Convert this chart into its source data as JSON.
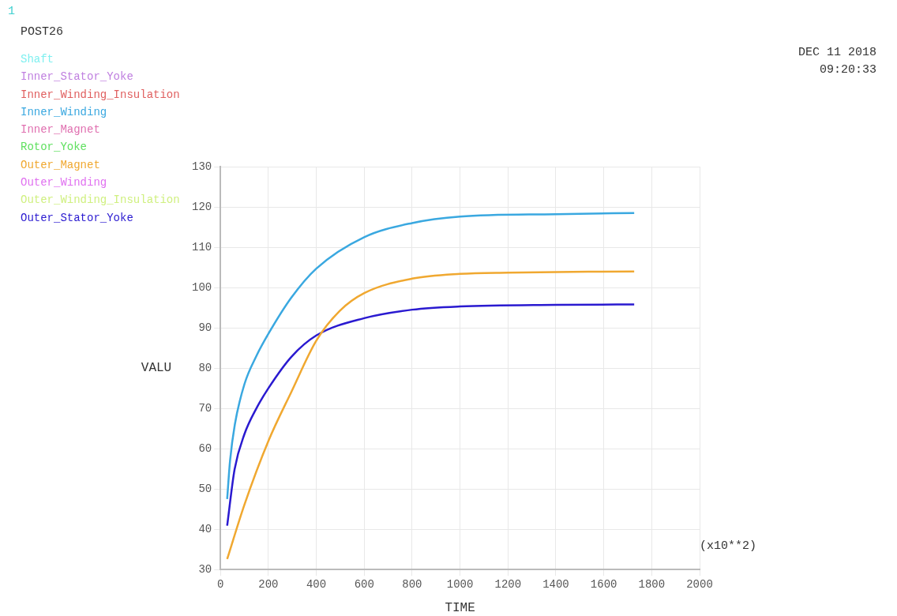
{
  "chart_data": {
    "type": "line",
    "xlabel": "TIME",
    "ylabel": "VALU",
    "annotations": [
      "1",
      "POST26",
      "DEC 11 2018",
      "09:20:33",
      "(x10**2)"
    ],
    "xlim": [
      0,
      2000
    ],
    "xticks": [
      0,
      200,
      400,
      600,
      800,
      1000,
      1200,
      1400,
      1600,
      1800,
      2000
    ],
    "ylim": [
      30,
      130
    ],
    "yticks": [
      30,
      40,
      50,
      60,
      70,
      80,
      90,
      100,
      110,
      120,
      130
    ],
    "grid": true,
    "legend": "top left",
    "marker": "none",
    "line_style": "solid",
    "series": [
      {
        "name": "Shaft",
        "color": "#80f0f0"
      },
      {
        "name": "Inner_Stator_Yoke",
        "color": "#c080e0"
      },
      {
        "name": "Inner_Winding_Insulation",
        "color": "#e06060"
      },
      {
        "name": "Inner_Winding",
        "color": "#3aa8e0",
        "x": [
          28,
          40,
          60,
          100,
          150,
          200,
          296,
          400,
          600,
          800,
          1000,
          1400,
          1727
        ],
        "values": [
          47.5,
          57,
          66,
          76,
          83,
          88.5,
          97.5,
          104.7,
          112.5,
          116,
          117.6,
          118.2,
          118.5
        ]
      },
      {
        "name": "Inner_Magnet",
        "color": "#e070b0"
      },
      {
        "name": "Rotor_Yoke",
        "color": "#60e060"
      },
      {
        "name": "Outer_Magnet",
        "color": "#f0a830",
        "x": [
          28,
          100,
          200,
          296,
          400,
          498,
          600,
          800,
          1000,
          1200,
          1727
        ],
        "values": [
          32.6,
          46.1,
          61.9,
          74.1,
          86.8,
          94.2,
          98.6,
          102.2,
          103.4,
          103.7,
          104
        ]
      },
      {
        "name": "Outer_Winding",
        "color": "#e070f0"
      },
      {
        "name": "Outer_Winding_Insulation",
        "color": "#d0f080"
      },
      {
        "name": "Outer_Stator_Yoke",
        "color": "#2a1ad0",
        "x": [
          28,
          59,
          100,
          150,
          200,
          296,
          400,
          600,
          800,
          1000,
          1400,
          1727
        ],
        "values": [
          40.9,
          54.9,
          63.6,
          70,
          75,
          82.8,
          88.1,
          92.4,
          94.5,
          95.3,
          95.7,
          95.8
        ]
      }
    ]
  }
}
